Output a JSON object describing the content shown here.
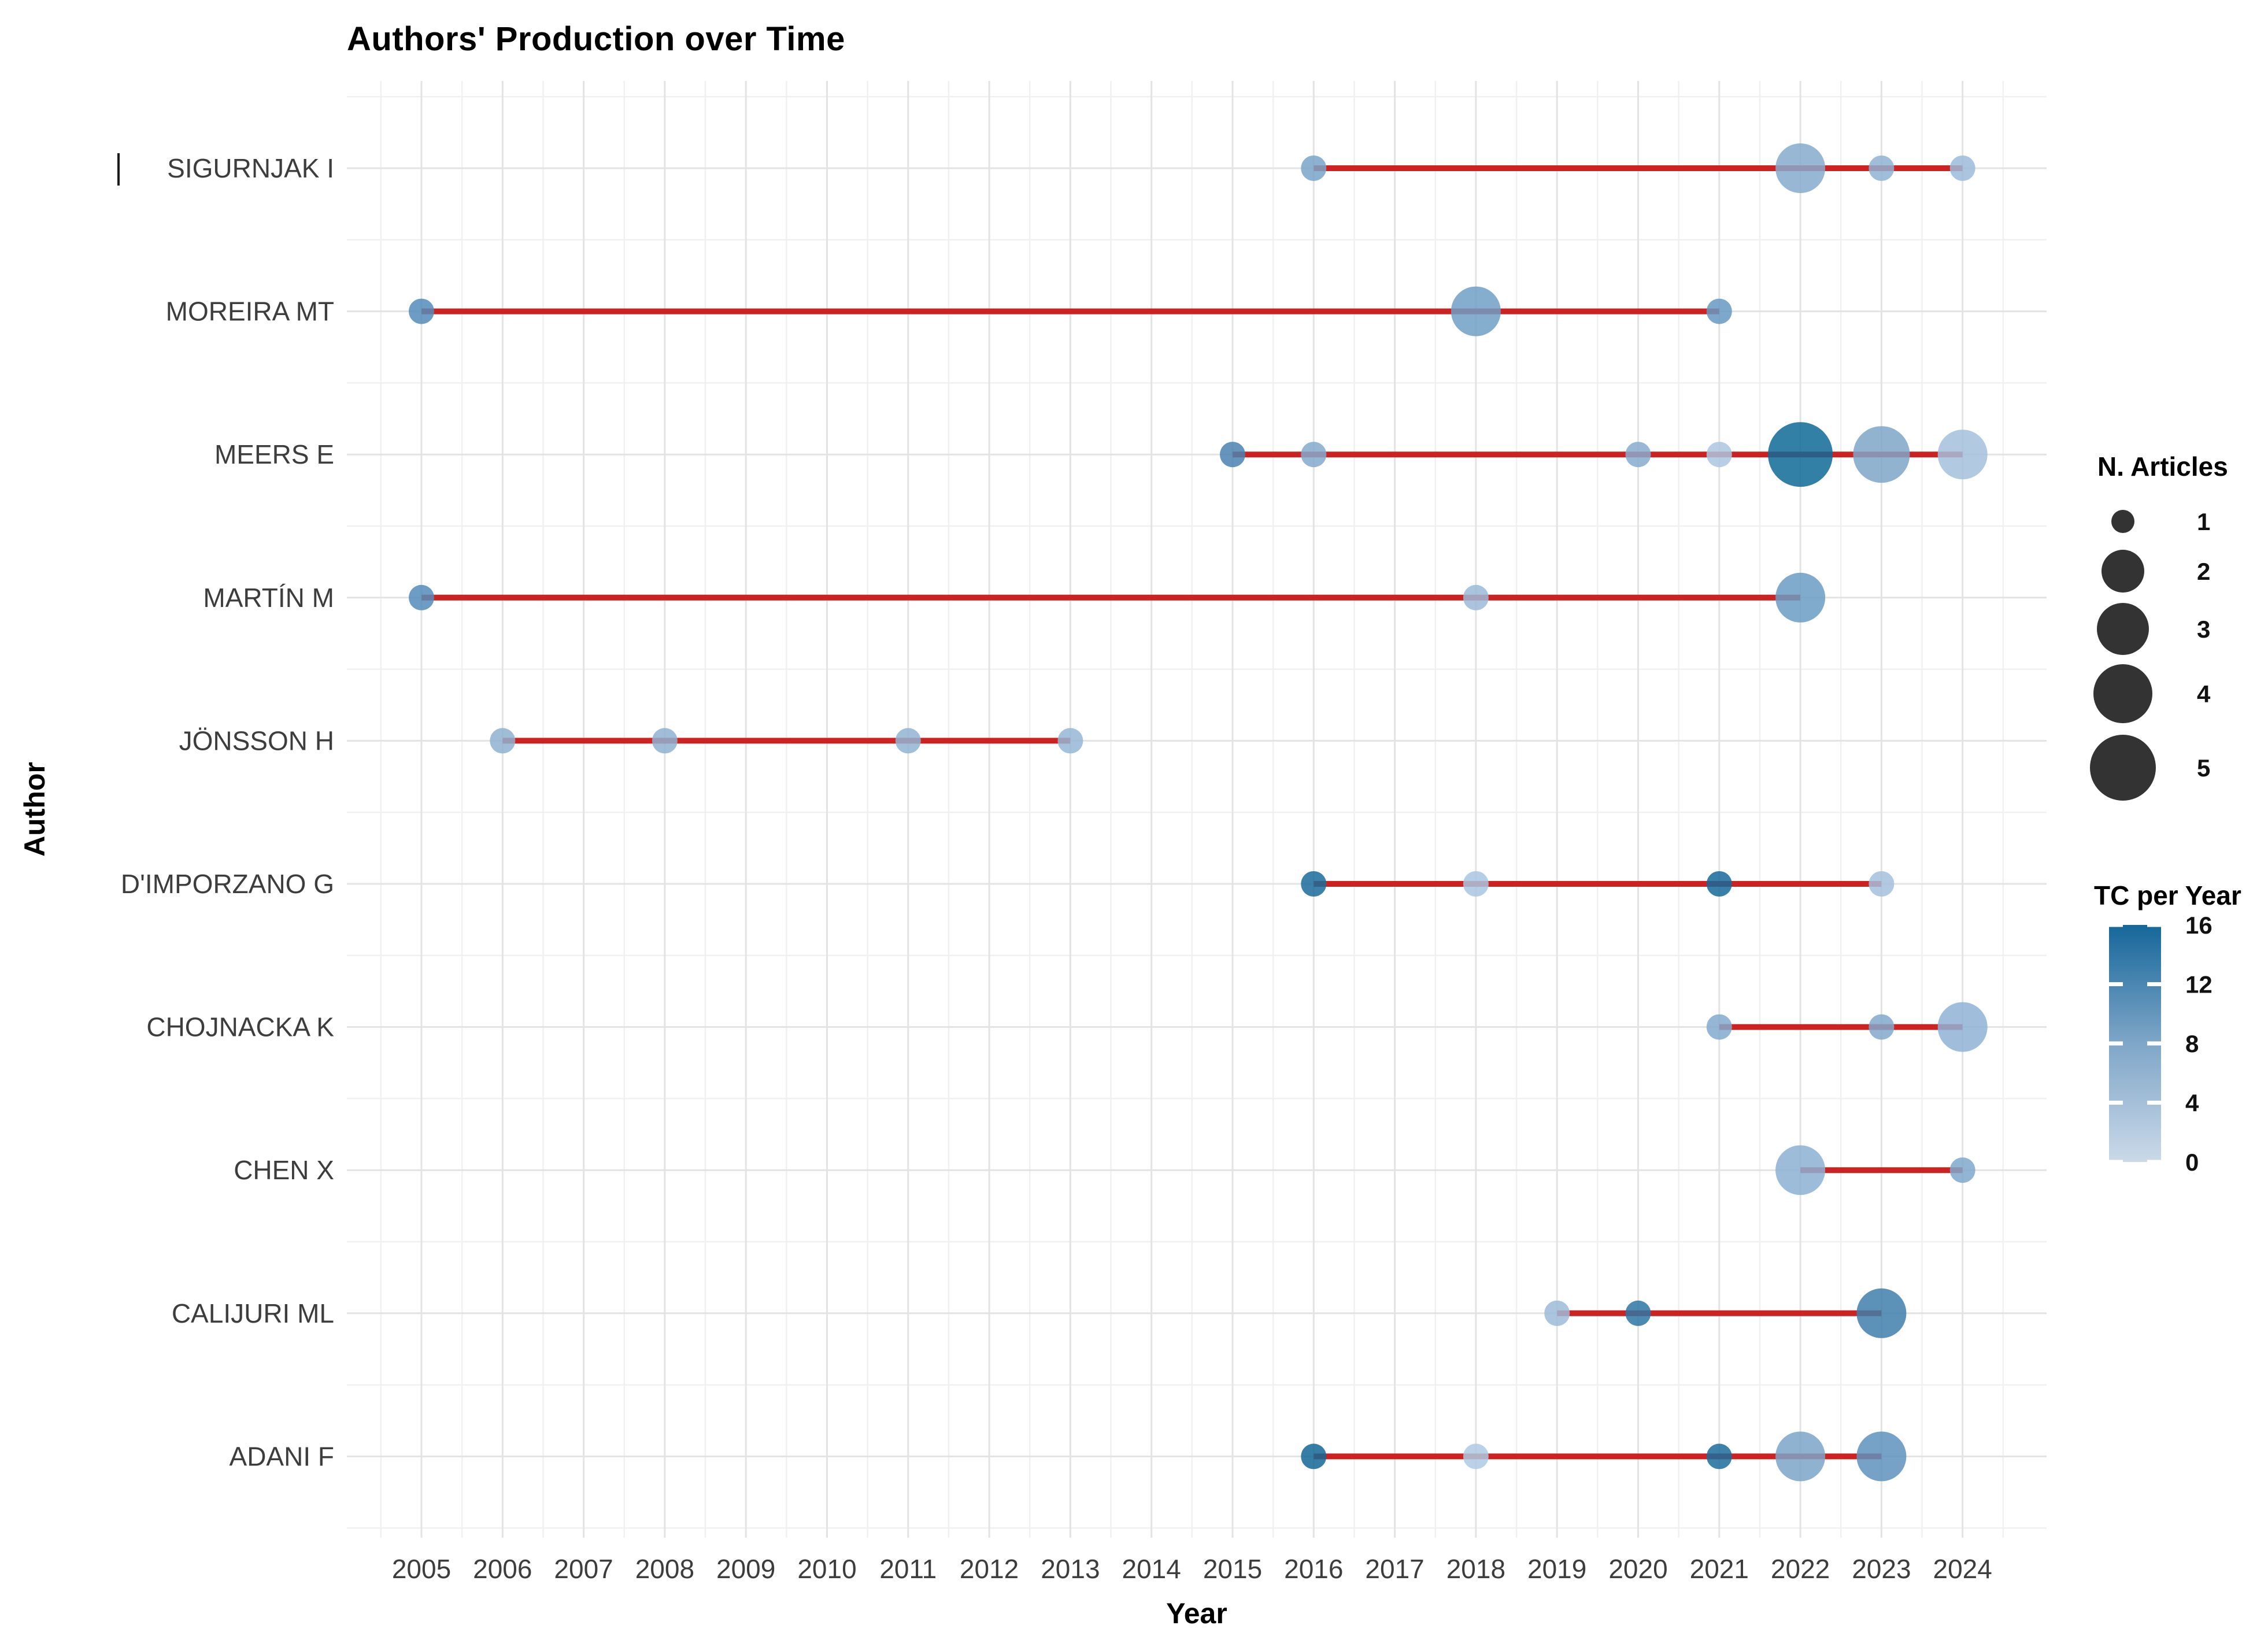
{
  "chart_data": {
    "type": "scatter",
    "subtype": "bubble-timeline",
    "title": "Authors' Production over Time",
    "xlabel": "Year",
    "ylabel": "Author",
    "x_range": [
      2005,
      2024
    ],
    "x_ticks": [
      2005,
      2006,
      2007,
      2008,
      2009,
      2010,
      2011,
      2012,
      2013,
      2014,
      2015,
      2016,
      2017,
      2018,
      2019,
      2020,
      2021,
      2022,
      2023,
      2024
    ],
    "grid": "major and minor, light gray on white",
    "timeline_color": "#CC2222",
    "bubble_opacity": 0.85,
    "authors": [
      {
        "name": "SIGURNJAK I",
        "line": [
          2016,
          2024
        ],
        "points": [
          {
            "year": 2016,
            "articles": 1,
            "tc_per_year": 6,
            "color": "#79A3C8"
          },
          {
            "year": 2022,
            "articles": 3,
            "tc_per_year": 5,
            "color": "#85AACC"
          },
          {
            "year": 2023,
            "articles": 1,
            "tc_per_year": 4,
            "color": "#8FB2D3"
          },
          {
            "year": 2024,
            "articles": 1,
            "tc_per_year": 3,
            "color": "#9CBBDA"
          }
        ]
      },
      {
        "name": "MOREIRA MT",
        "line": [
          2005,
          2021
        ],
        "points": [
          {
            "year": 2005,
            "articles": 1,
            "tc_per_year": 9,
            "color": "#548CBA"
          },
          {
            "year": 2018,
            "articles": 3,
            "tc_per_year": 7,
            "color": "#6F9FC5"
          },
          {
            "year": 2021,
            "articles": 1,
            "tc_per_year": 8,
            "color": "#6699C2"
          }
        ]
      },
      {
        "name": "MEERS E",
        "line": [
          2015,
          2024
        ],
        "points": [
          {
            "year": 2015,
            "articles": 1,
            "tc_per_year": 10,
            "color": "#4A83B1"
          },
          {
            "year": 2016,
            "articles": 1,
            "tc_per_year": 5,
            "color": "#84AACD"
          },
          {
            "year": 2020,
            "articles": 1,
            "tc_per_year": 5,
            "color": "#86ACCE"
          },
          {
            "year": 2021,
            "articles": 1,
            "tc_per_year": 2,
            "color": "#ABC6E0"
          },
          {
            "year": 2022,
            "articles": 5,
            "tc_per_year": 16,
            "color": "#0F6A96"
          },
          {
            "year": 2023,
            "articles": 4,
            "tc_per_year": 7,
            "color": "#7FA6C8"
          },
          {
            "year": 2024,
            "articles": 3,
            "tc_per_year": 3,
            "color": "#A3C0DC"
          }
        ]
      },
      {
        "name": "MARTÍN M",
        "line": [
          2005,
          2022
        ],
        "points": [
          {
            "year": 2005,
            "articles": 1,
            "tc_per_year": 9,
            "color": "#548CBA"
          },
          {
            "year": 2018,
            "articles": 1,
            "tc_per_year": 4,
            "color": "#9BBAD8"
          },
          {
            "year": 2022,
            "articles": 3,
            "tc_per_year": 8,
            "color": "#6B9CC3"
          }
        ]
      },
      {
        "name": "JÖNSSON H",
        "line": [
          2006,
          2013
        ],
        "points": [
          {
            "year": 2006,
            "articles": 1,
            "tc_per_year": 4,
            "color": "#8FB1D1"
          },
          {
            "year": 2008,
            "articles": 1,
            "tc_per_year": 4,
            "color": "#8FB1D1"
          },
          {
            "year": 2011,
            "articles": 1,
            "tc_per_year": 4,
            "color": "#92B4D4"
          },
          {
            "year": 2013,
            "articles": 1,
            "tc_per_year": 4,
            "color": "#95B6D5"
          }
        ]
      },
      {
        "name": "D'IMPORZANO G",
        "line": [
          2016,
          2023
        ],
        "points": [
          {
            "year": 2016,
            "articles": 1,
            "tc_per_year": 14,
            "color": "#1A6B9A"
          },
          {
            "year": 2018,
            "articles": 1,
            "tc_per_year": 2,
            "color": "#A9C5E0"
          },
          {
            "year": 2021,
            "articles": 1,
            "tc_per_year": 14,
            "color": "#15689A"
          },
          {
            "year": 2023,
            "articles": 1,
            "tc_per_year": 3,
            "color": "#A3C0DC"
          }
        ]
      },
      {
        "name": "CHOJNACKA K",
        "line": [
          2021,
          2024
        ],
        "points": [
          {
            "year": 2021,
            "articles": 1,
            "tc_per_year": 5,
            "color": "#82A9CC"
          },
          {
            "year": 2023,
            "articles": 1,
            "tc_per_year": 5,
            "color": "#81A8CB"
          },
          {
            "year": 2024,
            "articles": 3,
            "tc_per_year": 4,
            "color": "#8FB3D6"
          }
        ]
      },
      {
        "name": "CHEN X",
        "line": [
          2022,
          2024
        ],
        "points": [
          {
            "year": 2022,
            "articles": 3,
            "tc_per_year": 5,
            "color": "#8BB0D2"
          },
          {
            "year": 2024,
            "articles": 1,
            "tc_per_year": 5,
            "color": "#7FA8CD"
          }
        ]
      },
      {
        "name": "CALIJURI ML",
        "line": [
          2019,
          2023
        ],
        "points": [
          {
            "year": 2019,
            "articles": 1,
            "tc_per_year": 3,
            "color": "#9DBBD9"
          },
          {
            "year": 2020,
            "articles": 1,
            "tc_per_year": 12,
            "color": "#2D76A5"
          },
          {
            "year": 2023,
            "articles": 3,
            "tc_per_year": 10,
            "color": "#3F7EAB"
          }
        ]
      },
      {
        "name": "ADANI F",
        "line": [
          2016,
          2023
        ],
        "points": [
          {
            "year": 2016,
            "articles": 1,
            "tc_per_year": 14,
            "color": "#136795"
          },
          {
            "year": 2018,
            "articles": 1,
            "tc_per_year": 2,
            "color": "#AECAE3"
          },
          {
            "year": 2021,
            "articles": 1,
            "tc_per_year": 13,
            "color": "#1A6C9C"
          },
          {
            "year": 2022,
            "articles": 3,
            "tc_per_year": 6,
            "color": "#7CA5C9"
          },
          {
            "year": 2023,
            "articles": 3,
            "tc_per_year": 8,
            "color": "#5E92BD"
          }
        ]
      }
    ],
    "legend_size": {
      "title": "N. Articles",
      "values": [
        1,
        2,
        3,
        4,
        5
      ],
      "swatch_color": "#333333",
      "position": "right"
    },
    "legend_color": {
      "title": "TC per Year",
      "min": 0,
      "max": 16,
      "ticks": [
        16,
        12,
        8,
        4,
        0
      ],
      "color_min": "#CBD9E9",
      "color_mid": "#7FA6C8",
      "color_max": "#15679A",
      "position": "right"
    }
  }
}
